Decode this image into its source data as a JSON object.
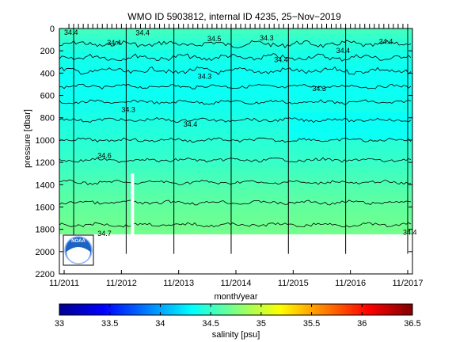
{
  "chart_data": {
    "type": "heatmap",
    "title": "WMO ID 5903812, internal ID 4235, 25−Nov−2019",
    "xlabel": "month/year",
    "ylabel": "pressure [dbar]",
    "x_tick_labels": [
      "11/2011",
      "11/2012",
      "11/2013",
      "11/2014",
      "11/2015",
      "11/2016",
      "11/2017"
    ],
    "x_ticks": [
      "2011-11",
      "2012-11",
      "2013-11",
      "2014-11",
      "2015-11",
      "2016-11",
      "2017-11"
    ],
    "xlim": [
      "2011-10",
      "2017-12"
    ],
    "y_ticks": [
      0,
      200,
      400,
      600,
      800,
      1000,
      1200,
      1400,
      1600,
      1800,
      2000,
      2200
    ],
    "ylim": [
      2200,
      0
    ],
    "y_reversed": true,
    "data_depth_limit": 1850,
    "colorbar": {
      "label": "salinity [psu]",
      "ticks": [
        33,
        33.5,
        34,
        34.5,
        35,
        35.5,
        36,
        36.5
      ],
      "range": [
        33,
        36.5
      ],
      "colormap": "jet"
    },
    "profile_lines": [
      "2012-01",
      "2012-12",
      "2013-10",
      "2014-10",
      "2015-10",
      "2016-10",
      "2017-11"
    ],
    "salinity_levels": [
      {
        "pressure": 0,
        "salinity": 34.55
      },
      {
        "pressure": 200,
        "salinity": 34.4
      },
      {
        "pressure": 400,
        "salinity": 34.35
      },
      {
        "pressure": 600,
        "salinity": 34.35
      },
      {
        "pressure": 800,
        "salinity": 34.4
      },
      {
        "pressure": 1000,
        "salinity": 34.45
      },
      {
        "pressure": 1200,
        "salinity": 34.5
      },
      {
        "pressure": 1400,
        "salinity": 34.58
      },
      {
        "pressure": 1600,
        "salinity": 34.65
      },
      {
        "pressure": 1800,
        "salinity": 34.7
      }
    ],
    "contour_labels": [
      "34.4",
      "34.4",
      "34.5",
      "34.4",
      "34.3",
      "34.4",
      "34.4",
      "34.4",
      "34.3",
      "34.3",
      "34.3",
      "34.4",
      "34.6",
      "34.7",
      "34.4"
    ],
    "logo": "noaa-logo"
  }
}
